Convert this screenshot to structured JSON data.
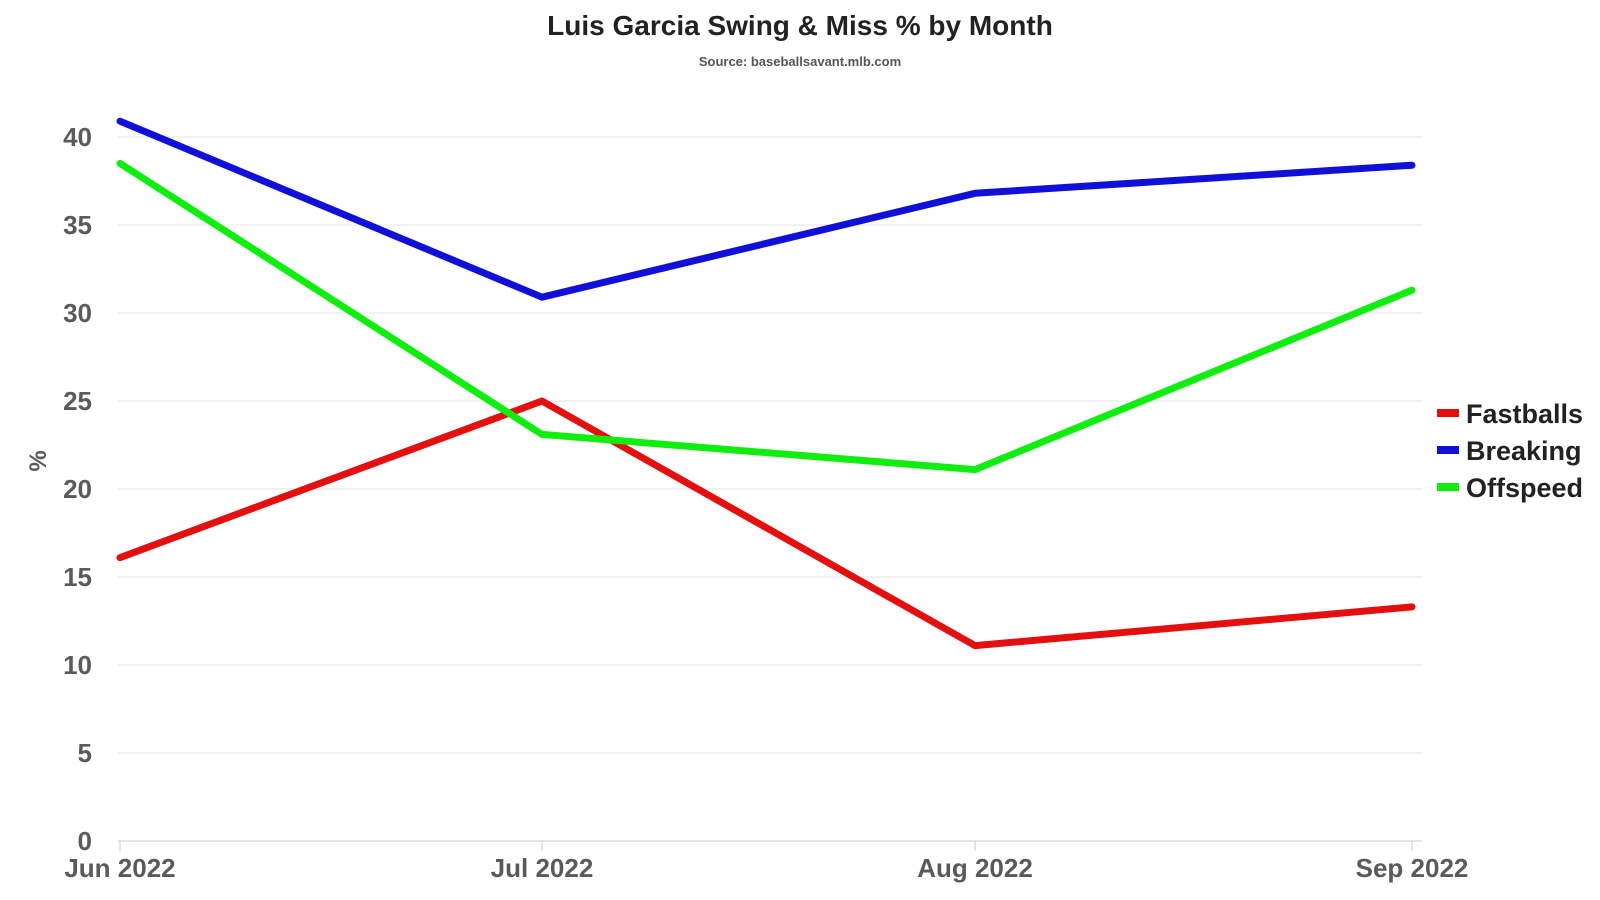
{
  "chart_data": {
    "type": "line",
    "title": "Luis Garcia Swing & Miss % by Month",
    "subtitle": "Source: baseballsavant.mlb.com",
    "xlabel": "",
    "ylabel": "%",
    "categories": [
      "Jun 2022",
      "Jul 2022",
      "Aug 2022",
      "Sep 2022"
    ],
    "ylim": [
      0,
      40
    ],
    "yticks": [
      0,
      5,
      10,
      15,
      20,
      25,
      30,
      35,
      40
    ],
    "grid": true,
    "legend_position": "right",
    "series": [
      {
        "name": "Fastballs",
        "color": "#e41010",
        "values": [
          16.1,
          25.0,
          11.1,
          13.3
        ]
      },
      {
        "name": "Breaking",
        "color": "#1010d8",
        "values": [
          40.9,
          30.9,
          36.8,
          38.4
        ]
      },
      {
        "name": "Offspeed",
        "color": "#10ee10",
        "values": [
          38.5,
          23.1,
          21.1,
          31.3
        ]
      }
    ]
  }
}
